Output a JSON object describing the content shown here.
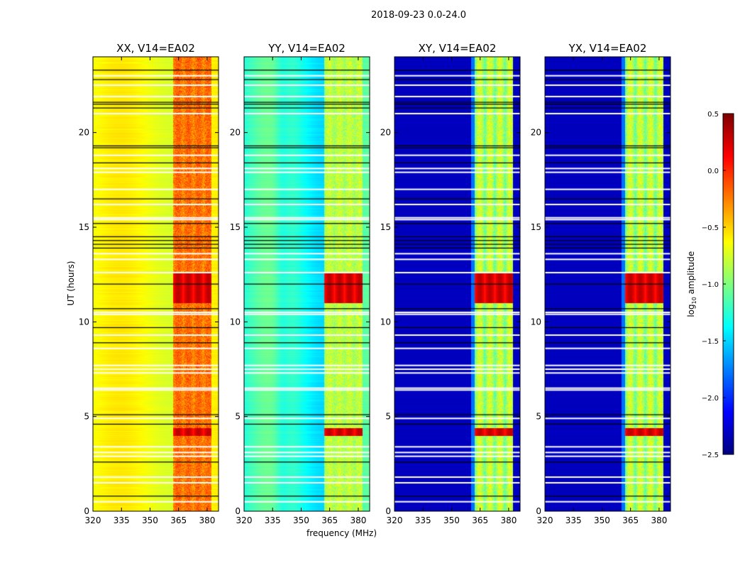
{
  "chart_data": {
    "type": "heatmap",
    "title": "2018-09-23 0.0-24.0",
    "xlabel": "frequency (MHz)",
    "ylabel": "UT (hours)",
    "xlim": [
      320,
      386
    ],
    "ylim": [
      0,
      24
    ],
    "xticks": [
      "320",
      "335",
      "350",
      "365",
      "380"
    ],
    "xtick_values": [
      320,
      335,
      350,
      365,
      380
    ],
    "yticks": [
      "0",
      "5",
      "10",
      "15",
      "20"
    ],
    "ytick_values": [
      0,
      5,
      10,
      15,
      20
    ],
    "panels": [
      {
        "title": "XX, V14=EA02",
        "base_level": -0.6,
        "rfi_level": -0.2
      },
      {
        "title": "YY, V14=EA02",
        "base_level": -1.3,
        "rfi_level": -0.9
      },
      {
        "title": "XY, V14=EA02",
        "base_level": -2.5,
        "rfi_level": -1.1
      },
      {
        "title": "YX, V14=EA02",
        "base_level": -2.5,
        "rfi_level": -1.1
      }
    ],
    "rfi_band_mhz": [
      362,
      382
    ],
    "strong_rfi_hours": [
      [
        4.0,
        4.4
      ],
      [
        11.0,
        12.6
      ]
    ],
    "flagged_hours_white": [
      0.5,
      1.5,
      1.8,
      2.9,
      3.1,
      3.4,
      4.9,
      6.4,
      6.5,
      7.3,
      7.5,
      7.7,
      8.6,
      9.3,
      10.4,
      10.5,
      12.6,
      13.3,
      13.6,
      15.4,
      15.5,
      16.2,
      17.0,
      17.9,
      18.1,
      18.8,
      21.0,
      21.9,
      22.5,
      23.0
    ],
    "flagged_hours_black": [
      0.8,
      2.6,
      4.6,
      5.1,
      8.9,
      9.7,
      10.7,
      12.0,
      13.9,
      14.1,
      14.3,
      14.5,
      15.2,
      16.5,
      18.4,
      19.2,
      19.3,
      21.3,
      21.5,
      21.6,
      22.8,
      23.3
    ],
    "colorbar": {
      "label": "log10 amplitude",
      "ticks": [
        "0.5",
        "0.0",
        "−0.5",
        "−1.0",
        "−1.5",
        "−2.0",
        "−2.5"
      ],
      "tick_values": [
        0.5,
        0.0,
        -0.5,
        -1.0,
        -1.5,
        -2.0,
        -2.5
      ],
      "range": [
        -2.5,
        0.5
      ],
      "colormap": "jet"
    }
  }
}
